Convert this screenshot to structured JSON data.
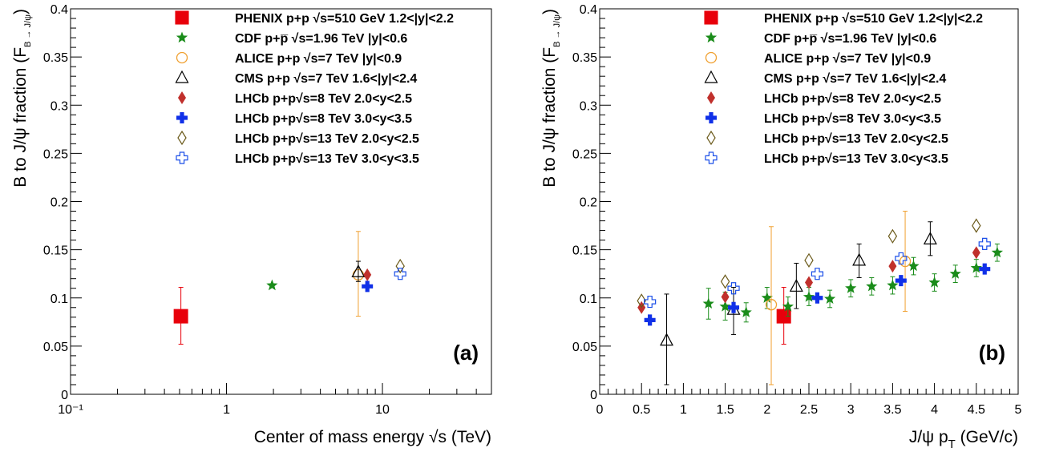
{
  "chart_data": [
    {
      "type": "scatter",
      "panel_label": "(a)",
      "xlabel": "Center of mass energy √s (TeV)",
      "ylabel": "B to J/ψ fraction (F",
      "ylabel_sub": "B → J/ψ",
      "x_scale": "log",
      "xlim": [
        0.1,
        50
      ],
      "ylim": [
        0,
        0.4
      ],
      "x_ticks": [
        "10⁻¹",
        "1",
        "10"
      ],
      "y_ticks": [
        "0",
        "0.05",
        "0.1",
        "0.15",
        "0.2",
        "0.25",
        "0.3",
        "0.35",
        "0.4"
      ],
      "legend_position": "top",
      "series": [
        {
          "name": "PHENIX p+p √s=510 GeV 1.2<|y|<2.2",
          "color": "#e8000b",
          "marker": "filled-square",
          "points": [
            {
              "x": 0.51,
              "y": 0.081,
              "ylo": 0.052,
              "yhi": 0.111
            }
          ]
        },
        {
          "name": "CDF p+p̅ √s=1.96 TeV |y|<0.6",
          "color": "#1a8c1a",
          "marker": "filled-star",
          "points": [
            {
              "x": 1.96,
              "y": 0.113
            }
          ]
        },
        {
          "name": "ALICE p+p √s=7 TeV |y|<0.9",
          "color": "#f0a030",
          "marker": "open-circle",
          "points": [
            {
              "x": 7.0,
              "y": 0.124,
              "ylo": 0.081,
              "yhi": 0.169
            }
          ]
        },
        {
          "name": "CMS p+p √s=7 TeV 1.6<|y|<2.4",
          "color": "#000000",
          "marker": "open-triangle",
          "points": [
            {
              "x": 7.0,
              "y": 0.127,
              "ylo": 0.117,
              "yhi": 0.138
            }
          ]
        },
        {
          "name": "LHCb p+p√s=8 TeV 2.0<y<2.5",
          "color": "#c0302c",
          "marker": "filled-diamond",
          "points": [
            {
              "x": 8.0,
              "y": 0.124
            }
          ]
        },
        {
          "name": "LHCb p+p√s=8 TeV 3.0<y<3.5",
          "color": "#1030e8",
          "marker": "filled-cross",
          "points": [
            {
              "x": 8.0,
              "y": 0.112
            }
          ]
        },
        {
          "name": "LHCb p+p√s=13 TeV 2.0<y<2.5",
          "color": "#6b5a1a",
          "marker": "open-diamond",
          "points": [
            {
              "x": 13.0,
              "y": 0.133
            }
          ]
        },
        {
          "name": "LHCb p+p√s=13 TeV 3.0<y<3.5",
          "color": "#1a4ee8",
          "marker": "open-cross",
          "points": [
            {
              "x": 13.0,
              "y": 0.125
            }
          ]
        }
      ]
    },
    {
      "type": "scatter",
      "panel_label": "(b)",
      "xlabel": "J/ψ p",
      "xlabel_sub": "T",
      "xlabel_suffix": " (GeV/c)",
      "ylabel": "B to J/ψ fraction (F",
      "ylabel_sub": "B → J/ψ",
      "x_scale": "linear",
      "xlim": [
        0,
        5
      ],
      "ylim": [
        0,
        0.4
      ],
      "x_ticks": [
        "0",
        "0.5",
        "1",
        "1.5",
        "2",
        "2.5",
        "3",
        "3.5",
        "4",
        "4.5",
        "5"
      ],
      "y_ticks": [
        "0",
        "0.05",
        "0.1",
        "0.15",
        "0.2",
        "0.25",
        "0.3",
        "0.35",
        "0.4"
      ],
      "legend_position": "top",
      "series": [
        {
          "name": "PHENIX p+p √s=510 GeV 1.2<|y|<2.2",
          "color": "#e8000b",
          "marker": "filled-square",
          "points": [
            {
              "x": 2.2,
              "y": 0.081,
              "ylo": 0.052,
              "yhi": 0.111
            }
          ]
        },
        {
          "name": "CDF p+p̅ √s=1.96 TeV |y|<0.6",
          "color": "#1a8c1a",
          "marker": "filled-star",
          "points": [
            {
              "x": 1.3,
              "y": 0.094,
              "ylo": 0.078,
              "yhi": 0.11
            },
            {
              "x": 1.5,
              "y": 0.091,
              "ylo": 0.077,
              "yhi": 0.106
            },
            {
              "x": 1.75,
              "y": 0.085,
              "ylo": 0.075,
              "yhi": 0.095
            },
            {
              "x": 2.0,
              "y": 0.1,
              "ylo": 0.089,
              "yhi": 0.111
            },
            {
              "x": 2.25,
              "y": 0.091,
              "ylo": 0.081,
              "yhi": 0.101
            },
            {
              "x": 2.5,
              "y": 0.101,
              "ylo": 0.092,
              "yhi": 0.111
            },
            {
              "x": 2.75,
              "y": 0.099,
              "ylo": 0.09,
              "yhi": 0.108
            },
            {
              "x": 3.0,
              "y": 0.11,
              "ylo": 0.101,
              "yhi": 0.119
            },
            {
              "x": 3.25,
              "y": 0.112,
              "ylo": 0.103,
              "yhi": 0.121
            },
            {
              "x": 3.5,
              "y": 0.113,
              "ylo": 0.104,
              "yhi": 0.122
            },
            {
              "x": 3.75,
              "y": 0.133,
              "ylo": 0.124,
              "yhi": 0.142
            },
            {
              "x": 4.0,
              "y": 0.116,
              "ylo": 0.107,
              "yhi": 0.125
            },
            {
              "x": 4.25,
              "y": 0.125,
              "ylo": 0.116,
              "yhi": 0.134
            },
            {
              "x": 4.5,
              "y": 0.131,
              "ylo": 0.122,
              "yhi": 0.14
            },
            {
              "x": 4.75,
              "y": 0.147,
              "ylo": 0.138,
              "yhi": 0.156
            }
          ]
        },
        {
          "name": "ALICE p+p √s=7 TeV |y|<0.9",
          "color": "#f0a030",
          "marker": "open-circle",
          "points": [
            {
              "x": 2.05,
              "y": 0.093,
              "ylo": 0.01,
              "yhi": 0.174
            },
            {
              "x": 3.65,
              "y": 0.138,
              "ylo": 0.086,
              "yhi": 0.19
            }
          ]
        },
        {
          "name": "CMS p+p √s=7 TeV 1.6<|y|<2.4",
          "color": "#000000",
          "marker": "open-triangle",
          "points": [
            {
              "x": 0.8,
              "y": 0.056,
              "ylo": 0.01,
              "yhi": 0.104
            },
            {
              "x": 1.6,
              "y": 0.088,
              "ylo": 0.062,
              "yhi": 0.111
            },
            {
              "x": 2.35,
              "y": 0.112,
              "ylo": 0.089,
              "yhi": 0.136
            },
            {
              "x": 3.1,
              "y": 0.139,
              "ylo": 0.121,
              "yhi": 0.156
            },
            {
              "x": 3.95,
              "y": 0.161,
              "ylo": 0.144,
              "yhi": 0.179
            }
          ]
        },
        {
          "name": "LHCb p+p√s=8 TeV 2.0<y<2.5",
          "color": "#c0302c",
          "marker": "filled-diamond",
          "points": [
            {
              "x": 0.5,
              "y": 0.09
            },
            {
              "x": 1.5,
              "y": 0.101
            },
            {
              "x": 2.5,
              "y": 0.116
            },
            {
              "x": 3.5,
              "y": 0.133
            },
            {
              "x": 4.5,
              "y": 0.147
            }
          ]
        },
        {
          "name": "LHCb p+p√s=8 TeV 3.0<y<3.5",
          "color": "#1030e8",
          "marker": "filled-cross",
          "points": [
            {
              "x": 0.6,
              "y": 0.077
            },
            {
              "x": 1.6,
              "y": 0.09
            },
            {
              "x": 2.6,
              "y": 0.1
            },
            {
              "x": 3.6,
              "y": 0.118
            },
            {
              "x": 4.6,
              "y": 0.13
            }
          ]
        },
        {
          "name": "LHCb p+p√s=13 TeV 2.0<y<2.5",
          "color": "#6b5a1a",
          "marker": "open-diamond",
          "points": [
            {
              "x": 0.5,
              "y": 0.097
            },
            {
              "x": 1.5,
              "y": 0.117
            },
            {
              "x": 2.5,
              "y": 0.139
            },
            {
              "x": 3.5,
              "y": 0.164
            },
            {
              "x": 4.5,
              "y": 0.175
            }
          ]
        },
        {
          "name": "LHCb p+p√s=13 TeV 3.0<y<3.5",
          "color": "#1a4ee8",
          "marker": "open-cross",
          "points": [
            {
              "x": 0.6,
              "y": 0.096
            },
            {
              "x": 1.6,
              "y": 0.11
            },
            {
              "x": 2.6,
              "y": 0.125
            },
            {
              "x": 3.6,
              "y": 0.141
            },
            {
              "x": 4.6,
              "y": 0.156
            }
          ]
        }
      ]
    }
  ]
}
